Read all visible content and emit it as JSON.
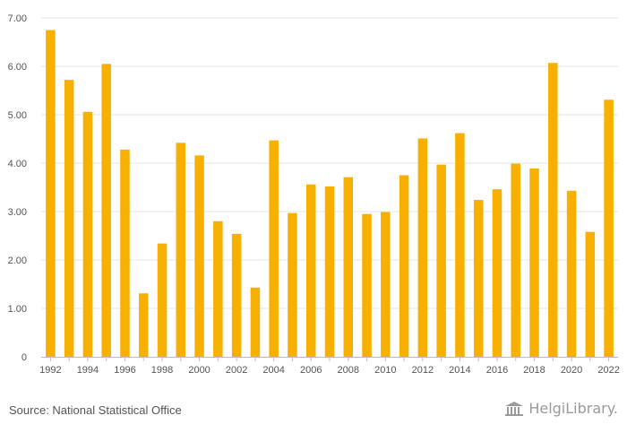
{
  "chart_data": {
    "type": "bar",
    "categories": [
      "1992",
      "1993",
      "1994",
      "1995",
      "1996",
      "1997",
      "1998",
      "1999",
      "2000",
      "2001",
      "2002",
      "2003",
      "2004",
      "2005",
      "2006",
      "2007",
      "2008",
      "2009",
      "2010",
      "2011",
      "2012",
      "2013",
      "2014",
      "2015",
      "2016",
      "2017",
      "2018",
      "2019",
      "2020",
      "2021",
      "2022"
    ],
    "x_tick_labels": [
      "1992",
      "1994",
      "1996",
      "1998",
      "2000",
      "2002",
      "2004",
      "2006",
      "2008",
      "2010",
      "2012",
      "2014",
      "2016",
      "2018",
      "2020",
      "2022"
    ],
    "values": [
      6.75,
      5.72,
      5.06,
      6.05,
      4.28,
      1.31,
      2.34,
      4.42,
      4.16,
      2.8,
      2.54,
      1.43,
      4.47,
      2.97,
      3.56,
      3.52,
      3.71,
      2.95,
      2.99,
      3.75,
      4.51,
      3.97,
      4.62,
      3.24,
      3.46,
      3.99,
      3.89,
      6.07,
      3.43,
      2.58,
      5.31
    ],
    "y_ticks": [
      "0",
      "1.00",
      "2.00",
      "3.00",
      "4.00",
      "5.00",
      "6.00",
      "7.00"
    ],
    "ylim": [
      0,
      7
    ],
    "title": "",
    "xlabel": "",
    "ylabel": "",
    "grid": true,
    "bar_color": "#f7b000",
    "grid_color": "#e6e6e6",
    "axis_color": "#bdbdbd"
  },
  "footer": {
    "source": "Source: National Statistical Office"
  },
  "logo": {
    "text": "HelgiLibrary."
  }
}
